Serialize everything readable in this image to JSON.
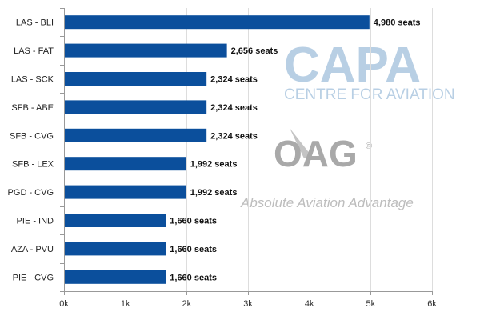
{
  "watermark": {
    "capa": "CAPA",
    "capa_sub": "CENTRE FOR AVIATION",
    "oag": "OAG",
    "oag_mark": "®",
    "tagline": "Absolute Aviation Advantage"
  },
  "colors": {
    "bar": "#0b4f9c",
    "axis": "#999999",
    "grid": "#dddddd",
    "capa_watermark": "#b8cfe4",
    "oag_watermark": "#a9a9a9"
  },
  "chart_data": {
    "type": "bar",
    "orientation": "horizontal",
    "categories": [
      "LAS - BLI",
      "LAS - FAT",
      "LAS - SCK",
      "SFB - ABE",
      "SFB - CVG",
      "SFB - LEX",
      "PGD - CVG",
      "PIE - IND",
      "AZA - PVU",
      "PIE - CVG"
    ],
    "values": [
      4980,
      2656,
      2324,
      2324,
      2324,
      1992,
      1992,
      1660,
      1660,
      1660
    ],
    "data_labels": [
      "4,980 seats",
      "2,656 seats",
      "2,324 seats",
      "2,324 seats",
      "2,324 seats",
      "1,992 seats",
      "1,992 seats",
      "1,660 seats",
      "1,660 seats",
      "1,660 seats"
    ],
    "title": "",
    "xlabel": "",
    "ylabel": "",
    "xlim": [
      0,
      6000
    ],
    "xticks": [
      0,
      1000,
      2000,
      3000,
      4000,
      5000,
      6000
    ],
    "xtick_labels": [
      "0k",
      "1k",
      "2k",
      "3k",
      "4k",
      "5k",
      "6k"
    ],
    "grid": "vertical",
    "legend": "none"
  }
}
